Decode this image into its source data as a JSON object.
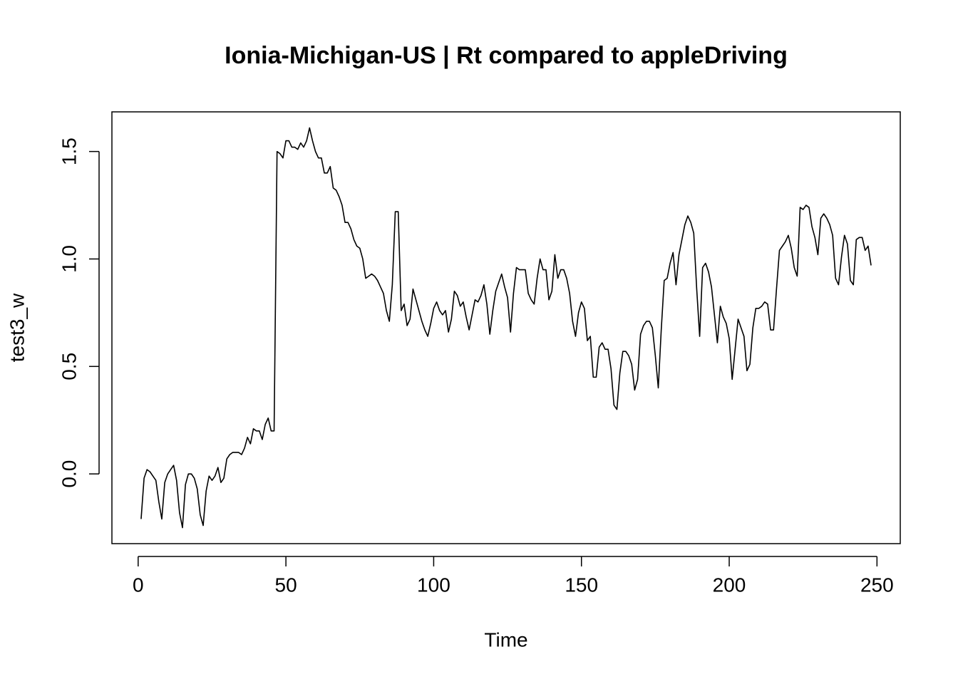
{
  "chart_data": {
    "type": "line",
    "title": "Ionia-Michigan-US | Rt compared to appleDriving",
    "xlabel": "Time",
    "ylabel": "test3_w",
    "xlim": [
      -8.88,
      257.88
    ],
    "ylim": [
      -0.3244,
      1.6844
    ],
    "xticks": [
      0,
      50,
      100,
      150,
      200,
      250
    ],
    "yticks": [
      {
        "value": 0,
        "label": "0.0"
      },
      {
        "value": 0.5,
        "label": "0.5"
      },
      {
        "value": 1,
        "label": "1.0"
      },
      {
        "value": 1.5,
        "label": "1.5"
      }
    ],
    "x": [
      1,
      2,
      3,
      4,
      5,
      6,
      7,
      8,
      9,
      10,
      11,
      12,
      13,
      14,
      15,
      16,
      17,
      18,
      19,
      20,
      21,
      22,
      23,
      24,
      25,
      26,
      27,
      28,
      29,
      30,
      31,
      32,
      33,
      34,
      35,
      36,
      37,
      38,
      39,
      40,
      41,
      42,
      43,
      44,
      45,
      46,
      47,
      48,
      49,
      50,
      51,
      52,
      53,
      54,
      55,
      56,
      57,
      58,
      59,
      60,
      61,
      62,
      63,
      64,
      65,
      66,
      67,
      68,
      69,
      70,
      71,
      72,
      73,
      74,
      75,
      76,
      77,
      78,
      79,
      80,
      81,
      82,
      83,
      84,
      85,
      86,
      87,
      88,
      89,
      90,
      91,
      92,
      93,
      94,
      95,
      96,
      97,
      98,
      99,
      100,
      101,
      102,
      103,
      104,
      105,
      106,
      107,
      108,
      109,
      110,
      111,
      112,
      113,
      114,
      115,
      116,
      117,
      118,
      119,
      120,
      121,
      122,
      123,
      124,
      125,
      126,
      127,
      128,
      129,
      130,
      131,
      132,
      133,
      134,
      135,
      136,
      137,
      138,
      139,
      140,
      141,
      142,
      143,
      144,
      145,
      146,
      147,
      148,
      149,
      150,
      151,
      152,
      153,
      154,
      155,
      156,
      157,
      158,
      159,
      160,
      161,
      162,
      163,
      164,
      165,
      166,
      167,
      168,
      169,
      170,
      171,
      172,
      173,
      174,
      175,
      176,
      177,
      178,
      179,
      180,
      181,
      182,
      183,
      184,
      185,
      186,
      187,
      188,
      189,
      190,
      191,
      192,
      193,
      194,
      195,
      196,
      197,
      198,
      199,
      200,
      201,
      202,
      203,
      204,
      205,
      206,
      207,
      208,
      209,
      210,
      211,
      212,
      213,
      214,
      215,
      216,
      217,
      218,
      219,
      220,
      221,
      222,
      223,
      224,
      225,
      226,
      227,
      228,
      229,
      230,
      231,
      232,
      233,
      234,
      235,
      236,
      237,
      238,
      239,
      240,
      241,
      242,
      243,
      244,
      245,
      246,
      247,
      248
    ],
    "series": [
      {
        "color": "#000000",
        "values": [
          -0.21,
          -0.02,
          0.02,
          0.01,
          -0.01,
          -0.03,
          -0.13,
          -0.21,
          -0.04,
          0.0,
          0.02,
          0.04,
          -0.03,
          -0.18,
          -0.25,
          -0.05,
          0.0,
          0.0,
          -0.02,
          -0.07,
          -0.19,
          -0.24,
          -0.08,
          -0.01,
          -0.03,
          -0.01,
          0.03,
          -0.04,
          -0.02,
          0.07,
          0.09,
          0.1,
          0.1,
          0.1,
          0.09,
          0.12,
          0.17,
          0.14,
          0.21,
          0.2,
          0.2,
          0.16,
          0.23,
          0.26,
          0.2,
          0.2,
          1.5,
          1.49,
          1.47,
          1.55,
          1.55,
          1.52,
          1.52,
          1.51,
          1.54,
          1.52,
          1.55,
          1.61,
          1.55,
          1.5,
          1.47,
          1.47,
          1.4,
          1.4,
          1.43,
          1.33,
          1.32,
          1.29,
          1.25,
          1.17,
          1.17,
          1.14,
          1.09,
          1.06,
          1.05,
          1.0,
          0.91,
          0.92,
          0.93,
          0.92,
          0.9,
          0.87,
          0.84,
          0.76,
          0.71,
          0.88,
          1.22,
          1.22,
          0.76,
          0.79,
          0.69,
          0.72,
          0.86,
          0.81,
          0.76,
          0.71,
          0.67,
          0.64,
          0.7,
          0.77,
          0.8,
          0.76,
          0.74,
          0.76,
          0.66,
          0.72,
          0.85,
          0.83,
          0.78,
          0.8,
          0.73,
          0.67,
          0.74,
          0.81,
          0.8,
          0.83,
          0.88,
          0.79,
          0.65,
          0.76,
          0.85,
          0.89,
          0.93,
          0.87,
          0.82,
          0.66,
          0.84,
          0.96,
          0.95,
          0.95,
          0.95,
          0.84,
          0.81,
          0.79,
          0.91,
          1.0,
          0.95,
          0.95,
          0.81,
          0.85,
          1.02,
          0.91,
          0.95,
          0.95,
          0.91,
          0.84,
          0.71,
          0.64,
          0.75,
          0.8,
          0.77,
          0.62,
          0.64,
          0.45,
          0.45,
          0.59,
          0.61,
          0.58,
          0.58,
          0.49,
          0.32,
          0.3,
          0.47,
          0.57,
          0.57,
          0.55,
          0.51,
          0.39,
          0.44,
          0.65,
          0.69,
          0.71,
          0.71,
          0.68,
          0.55,
          0.4,
          0.67,
          0.9,
          0.91,
          0.98,
          1.03,
          0.88,
          1.02,
          1.09,
          1.16,
          1.2,
          1.17,
          1.12,
          0.86,
          0.64,
          0.96,
          0.98,
          0.94,
          0.87,
          0.74,
          0.61,
          0.78,
          0.73,
          0.7,
          0.63,
          0.44,
          0.58,
          0.72,
          0.68,
          0.64,
          0.48,
          0.51,
          0.68,
          0.77,
          0.77,
          0.78,
          0.8,
          0.79,
          0.67,
          0.67,
          0.86,
          1.04,
          1.06,
          1.08,
          1.11,
          1.05,
          0.96,
          0.92,
          1.24,
          1.23,
          1.25,
          1.24,
          1.15,
          1.1,
          1.02,
          1.19,
          1.21,
          1.19,
          1.16,
          1.11,
          0.91,
          0.88,
          1.01,
          1.11,
          1.07,
          0.9,
          0.88,
          1.09,
          1.1,
          1.1,
          1.04,
          1.06,
          0.97
        ]
      }
    ]
  }
}
